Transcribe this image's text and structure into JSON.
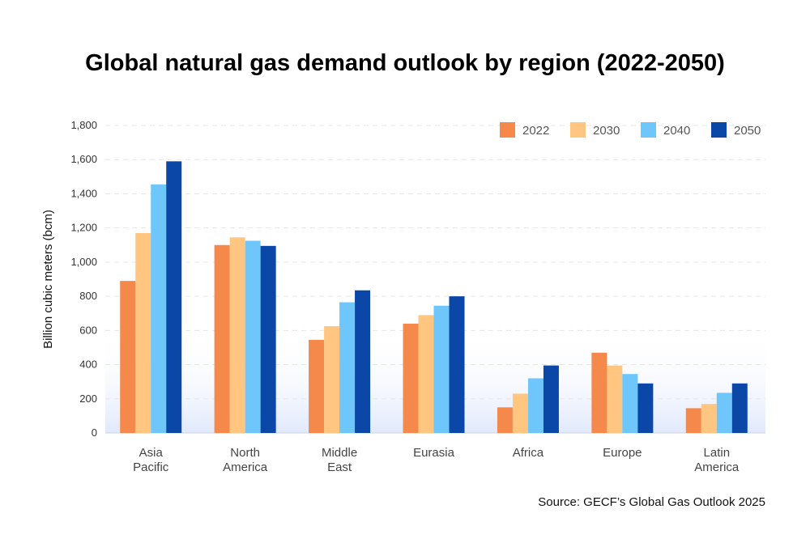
{
  "chart_data": {
    "type": "bar",
    "title": "Global natural gas demand outlook by region (2022-2050)",
    "xlabel": "",
    "ylabel": "Billion cubic meters (bcm)",
    "ylim": [
      0,
      1800
    ],
    "yticks": [
      0,
      200,
      400,
      600,
      800,
      1000,
      1200,
      1400,
      1600,
      1800
    ],
    "ytick_labels": [
      "0",
      "200",
      "400",
      "600",
      "800",
      "1,000",
      "1,200",
      "1,400",
      "1,600",
      "1,800"
    ],
    "grid": true,
    "legend_position": "top-right",
    "categories": [
      [
        "Asia",
        "Pacific"
      ],
      [
        "North",
        "America"
      ],
      [
        "Middle",
        "East"
      ],
      [
        "Eurasia"
      ],
      [
        "Africa"
      ],
      [
        "Europe"
      ],
      [
        "Latin",
        "America"
      ]
    ],
    "series": [
      {
        "name": "2022",
        "color": "#F5894B",
        "values": [
          890,
          1100,
          545,
          640,
          150,
          470,
          145
        ]
      },
      {
        "name": "2030",
        "color": "#FFC682",
        "values": [
          1170,
          1145,
          625,
          690,
          230,
          395,
          170
        ]
      },
      {
        "name": "2040",
        "color": "#6EC6FB",
        "values": [
          1455,
          1125,
          765,
          745,
          320,
          345,
          235
        ]
      },
      {
        "name": "2050",
        "color": "#0A47A6",
        "values": [
          1590,
          1095,
          835,
          800,
          395,
          290,
          290
        ]
      }
    ],
    "source": "Source: GECF’s Global Gas Outlook 2025"
  }
}
